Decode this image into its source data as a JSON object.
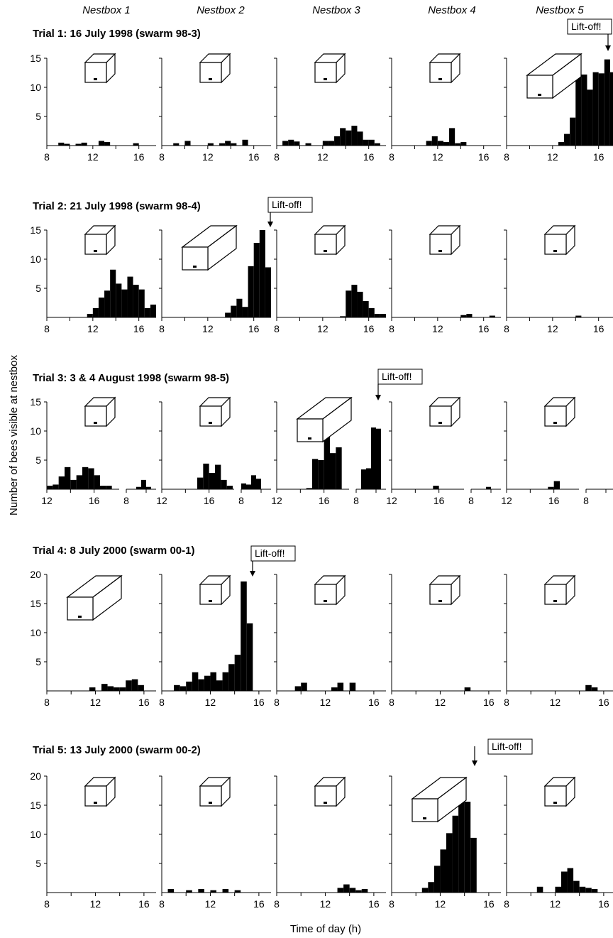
{
  "columns": [
    "Nestbox 1",
    "Nestbox 2",
    "Nestbox 3",
    "Nestbox 4",
    "Nestbox 5"
  ],
  "ylabel": "Number of bees visible at nestbox",
  "xlabel": "Time of day (h)",
  "liftoff_label": "Lift-off!",
  "chart_data": [
    {
      "type": "bar",
      "title": "Trial 1: 16 July 1998 (swarm 98-3)",
      "ylim": [
        0,
        15
      ],
      "yticks": [
        "5",
        "10",
        "15"
      ],
      "xlim": [
        8,
        17.5
      ],
      "xticks": [
        8,
        12,
        16
      ],
      "chosen_nestbox": 5,
      "liftoff_nestbox": 5,
      "liftoff_time": 17.25,
      "panels": [
        {
          "nestbox": "Nestbox 1",
          "bars": [
            [
              9.25,
              0.5
            ],
            [
              9.75,
              0.3
            ],
            [
              10.75,
              0.3
            ],
            [
              11.25,
              0.5
            ],
            [
              12.75,
              0.8
            ],
            [
              13.25,
              0.6
            ],
            [
              15.75,
              0.4
            ]
          ]
        },
        {
          "nestbox": "Nestbox 2",
          "bars": [
            [
              9.25,
              0.4
            ],
            [
              10.25,
              0.8
            ],
            [
              12.25,
              0.4
            ],
            [
              13.25,
              0.4
            ],
            [
              13.75,
              0.8
            ],
            [
              14.25,
              0.4
            ],
            [
              15.25,
              1.0
            ]
          ]
        },
        {
          "nestbox": "Nestbox 3",
          "bars": [
            [
              8.75,
              0.8
            ],
            [
              9.25,
              1.0
            ],
            [
              9.75,
              0.7
            ],
            [
              10.75,
              0.4
            ],
            [
              12.25,
              0.8
            ],
            [
              12.75,
              0.8
            ],
            [
              13.25,
              1.6
            ],
            [
              13.75,
              3.0
            ],
            [
              14.25,
              2.6
            ],
            [
              14.75,
              3.4
            ],
            [
              15.25,
              2.4
            ],
            [
              15.75,
              1.0
            ],
            [
              16.25,
              1.0
            ],
            [
              16.75,
              0.4
            ]
          ]
        },
        {
          "nestbox": "Nestbox 4",
          "bars": [
            [
              11.25,
              0.8
            ],
            [
              11.75,
              1.6
            ],
            [
              12.25,
              0.8
            ],
            [
              12.75,
              0.6
            ],
            [
              13.25,
              3.0
            ],
            [
              13.75,
              0.4
            ],
            [
              14.25,
              0.6
            ]
          ]
        },
        {
          "nestbox": "Nestbox 5",
          "bars": [
            [
              12.75,
              0.6
            ],
            [
              13.25,
              2.0
            ],
            [
              13.75,
              4.8
            ],
            [
              14.25,
              11.8
            ],
            [
              14.75,
              12.2
            ],
            [
              15.25,
              9.6
            ],
            [
              15.75,
              12.6
            ],
            [
              16.25,
              12.4
            ],
            [
              16.75,
              14.8
            ],
            [
              17.25,
              12.6
            ]
          ]
        }
      ]
    },
    {
      "type": "bar",
      "title": "Trial 2: 21 July 1998 (swarm 98-4)",
      "ylim": [
        0,
        15
      ],
      "yticks": [
        "5",
        "10",
        "15"
      ],
      "xlim": [
        8,
        17.5
      ],
      "xticks": [
        8,
        12,
        16
      ],
      "chosen_nestbox": 2,
      "liftoff_nestbox": 2,
      "liftoff_time": 17.75,
      "panels": [
        {
          "nestbox": "Nestbox 1",
          "bars": [
            [
              11.75,
              0.6
            ],
            [
              12.25,
              1.6
            ],
            [
              12.75,
              3.4
            ],
            [
              13.25,
              4.6
            ],
            [
              13.75,
              8.2
            ],
            [
              14.25,
              5.8
            ],
            [
              14.75,
              4.8
            ],
            [
              15.25,
              7.0
            ],
            [
              15.75,
              5.6
            ],
            [
              16.25,
              4.8
            ],
            [
              16.75,
              1.6
            ],
            [
              17.25,
              2.2
            ]
          ]
        },
        {
          "nestbox": "Nestbox 2",
          "bars": [
            [
              13.75,
              0.8
            ],
            [
              14.25,
              2.0
            ],
            [
              14.75,
              3.2
            ],
            [
              15.25,
              1.8
            ],
            [
              15.75,
              8.8
            ],
            [
              16.25,
              12.8
            ],
            [
              16.75,
              15.0
            ],
            [
              17.25,
              8.6
            ]
          ]
        },
        {
          "nestbox": "Nestbox 3",
          "bars": [
            [
              13.75,
              0.2
            ],
            [
              14.25,
              4.6
            ],
            [
              14.75,
              5.6
            ],
            [
              15.25,
              4.4
            ],
            [
              15.75,
              2.8
            ],
            [
              16.25,
              1.6
            ],
            [
              16.75,
              0.6
            ],
            [
              17.25,
              0.6
            ]
          ]
        },
        {
          "nestbox": "Nestbox 4",
          "bars": [
            [
              14.25,
              0.4
            ],
            [
              14.75,
              0.6
            ],
            [
              16.75,
              0.3
            ]
          ]
        },
        {
          "nestbox": "Nestbox 5",
          "bars": [
            [
              14.25,
              0.3
            ]
          ]
        }
      ]
    },
    {
      "type": "bar",
      "title": "Trial 3: 3 & 4 August 1998 (swarm 98-5)",
      "ylim": [
        0,
        15
      ],
      "yticks": [
        "5",
        "10",
        "15"
      ],
      "xticks_day1": [
        12,
        16
      ],
      "xticks_day2": [
        8
      ],
      "chosen_nestbox": 3,
      "liftoff_nestbox": 3,
      "liftoff_time": "day 2, 11.0",
      "panels": [
        {
          "nestbox": "Nestbox 1",
          "day1": [
            [
              12.25,
              0.6
            ],
            [
              12.75,
              0.8
            ],
            [
              13.25,
              2.2
            ],
            [
              13.75,
              3.8
            ],
            [
              14.25,
              1.6
            ],
            [
              14.75,
              2.4
            ],
            [
              15.25,
              3.8
            ],
            [
              15.75,
              3.6
            ],
            [
              16.25,
              2.4
            ],
            [
              16.75,
              0.6
            ],
            [
              17.25,
              0.6
            ]
          ],
          "day2": [
            [
              9.25,
              0.4
            ],
            [
              9.75,
              1.6
            ],
            [
              10.25,
              0.4
            ]
          ]
        },
        {
          "nestbox": "Nestbox 2",
          "day1": [
            [
              15.25,
              2.0
            ],
            [
              15.75,
              4.4
            ],
            [
              16.25,
              2.8
            ],
            [
              16.75,
              4.2
            ],
            [
              17.25,
              1.6
            ],
            [
              17.75,
              0.6
            ]
          ],
          "day2": [
            [
              8.25,
              1.0
            ],
            [
              8.75,
              0.8
            ],
            [
              9.25,
              2.4
            ],
            [
              9.75,
              1.8
            ]
          ]
        },
        {
          "nestbox": "Nestbox 3",
          "day1": [
            [
              14.75,
              0.2
            ],
            [
              15.25,
              5.2
            ],
            [
              15.75,
              5.0
            ],
            [
              16.25,
              10.2
            ],
            [
              16.75,
              6.2
            ],
            [
              17.25,
              7.2
            ]
          ],
          "day2": [
            [
              8.75,
              3.4
            ],
            [
              9.25,
              3.6
            ],
            [
              9.75,
              10.6
            ],
            [
              10.25,
              10.4
            ]
          ]
        },
        {
          "nestbox": "Nestbox 4",
          "day1": [
            [
              15.75,
              0.6
            ]
          ],
          "day2": [
            [
              9.75,
              0.4
            ]
          ]
        },
        {
          "nestbox": "Nestbox 5",
          "day1": [
            [
              15.75,
              0.4
            ],
            [
              16.25,
              1.4
            ]
          ],
          "day2": []
        }
      ]
    },
    {
      "type": "bar",
      "title": "Trial 4: 8 July 2000 (swarm 00-1)",
      "ylim": [
        0,
        20
      ],
      "yticks": [
        "5",
        "10",
        "15",
        "20"
      ],
      "xlim": [
        8,
        17
      ],
      "xticks": [
        8,
        12,
        16
      ],
      "chosen_nestbox": 1,
      "liftoff_nestbox": 2,
      "liftoff_time": 16.0,
      "panels": [
        {
          "nestbox": "Nestbox 1",
          "bars": [
            [
              11.75,
              0.6
            ],
            [
              12.75,
              1.2
            ],
            [
              13.25,
              0.8
            ],
            [
              13.75,
              0.6
            ],
            [
              14.25,
              0.6
            ],
            [
              14.75,
              1.8
            ],
            [
              15.25,
              2.0
            ],
            [
              15.75,
              1.0
            ]
          ]
        },
        {
          "nestbox": "Nestbox 2",
          "bars": [
            [
              9.25,
              1.0
            ],
            [
              9.75,
              0.8
            ],
            [
              10.25,
              1.6
            ],
            [
              10.75,
              3.2
            ],
            [
              11.25,
              2.0
            ],
            [
              11.75,
              2.6
            ],
            [
              12.25,
              3.2
            ],
            [
              12.75,
              1.8
            ],
            [
              13.25,
              3.2
            ],
            [
              13.75,
              4.6
            ],
            [
              14.25,
              6.2
            ],
            [
              14.75,
              18.8
            ],
            [
              15.25,
              11.6
            ]
          ]
        },
        {
          "nestbox": "Nestbox 3",
          "bars": [
            [
              9.75,
              0.8
            ],
            [
              10.25,
              1.4
            ],
            [
              12.75,
              0.6
            ],
            [
              13.25,
              1.4
            ],
            [
              14.25,
              1.4
            ]
          ]
        },
        {
          "nestbox": "Nestbox 4",
          "bars": [
            [
              14.25,
              0.6
            ]
          ]
        },
        {
          "nestbox": "Nestbox 5",
          "bars": [
            [
              14.75,
              1.0
            ],
            [
              15.25,
              0.6
            ]
          ]
        }
      ]
    },
    {
      "type": "bar",
      "title": "Trial 5: 13 July 2000 (swarm 00-2)",
      "ylim": [
        0,
        20
      ],
      "yticks": [
        "5",
        "10",
        "15",
        "20"
      ],
      "xlim": [
        8,
        17
      ],
      "xticks": [
        8,
        12,
        16
      ],
      "chosen_nestbox": 4,
      "liftoff_nestbox": 4,
      "liftoff_time": 15.5,
      "panels": [
        {
          "nestbox": "Nestbox 1",
          "bars": []
        },
        {
          "nestbox": "Nestbox 2",
          "bars": [
            [
              8.75,
              0.6
            ],
            [
              10.25,
              0.4
            ],
            [
              11.25,
              0.6
            ],
            [
              12.25,
              0.4
            ],
            [
              13.25,
              0.6
            ],
            [
              14.25,
              0.4
            ]
          ]
        },
        {
          "nestbox": "Nestbox 3",
          "bars": [
            [
              13.25,
              0.8
            ],
            [
              13.75,
              1.4
            ],
            [
              14.25,
              0.8
            ],
            [
              14.75,
              0.4
            ],
            [
              15.25,
              0.6
            ]
          ]
        },
        {
          "nestbox": "Nestbox 4",
          "bars": [
            [
              10.75,
              0.8
            ],
            [
              11.25,
              1.8
            ],
            [
              11.75,
              4.6
            ],
            [
              12.25,
              7.4
            ],
            [
              12.75,
              10.2
            ],
            [
              13.25,
              13.2
            ],
            [
              13.75,
              17.6
            ],
            [
              14.25,
              15.6
            ],
            [
              14.75,
              9.4
            ]
          ]
        },
        {
          "nestbox": "Nestbox 5",
          "bars": [
            [
              10.75,
              1.0
            ],
            [
              12.25,
              1.0
            ],
            [
              12.75,
              3.6
            ],
            [
              13.25,
              4.2
            ],
            [
              13.75,
              2.0
            ],
            [
              14.25,
              1.0
            ],
            [
              14.75,
              0.8
            ],
            [
              15.25,
              0.6
            ]
          ]
        }
      ]
    }
  ]
}
